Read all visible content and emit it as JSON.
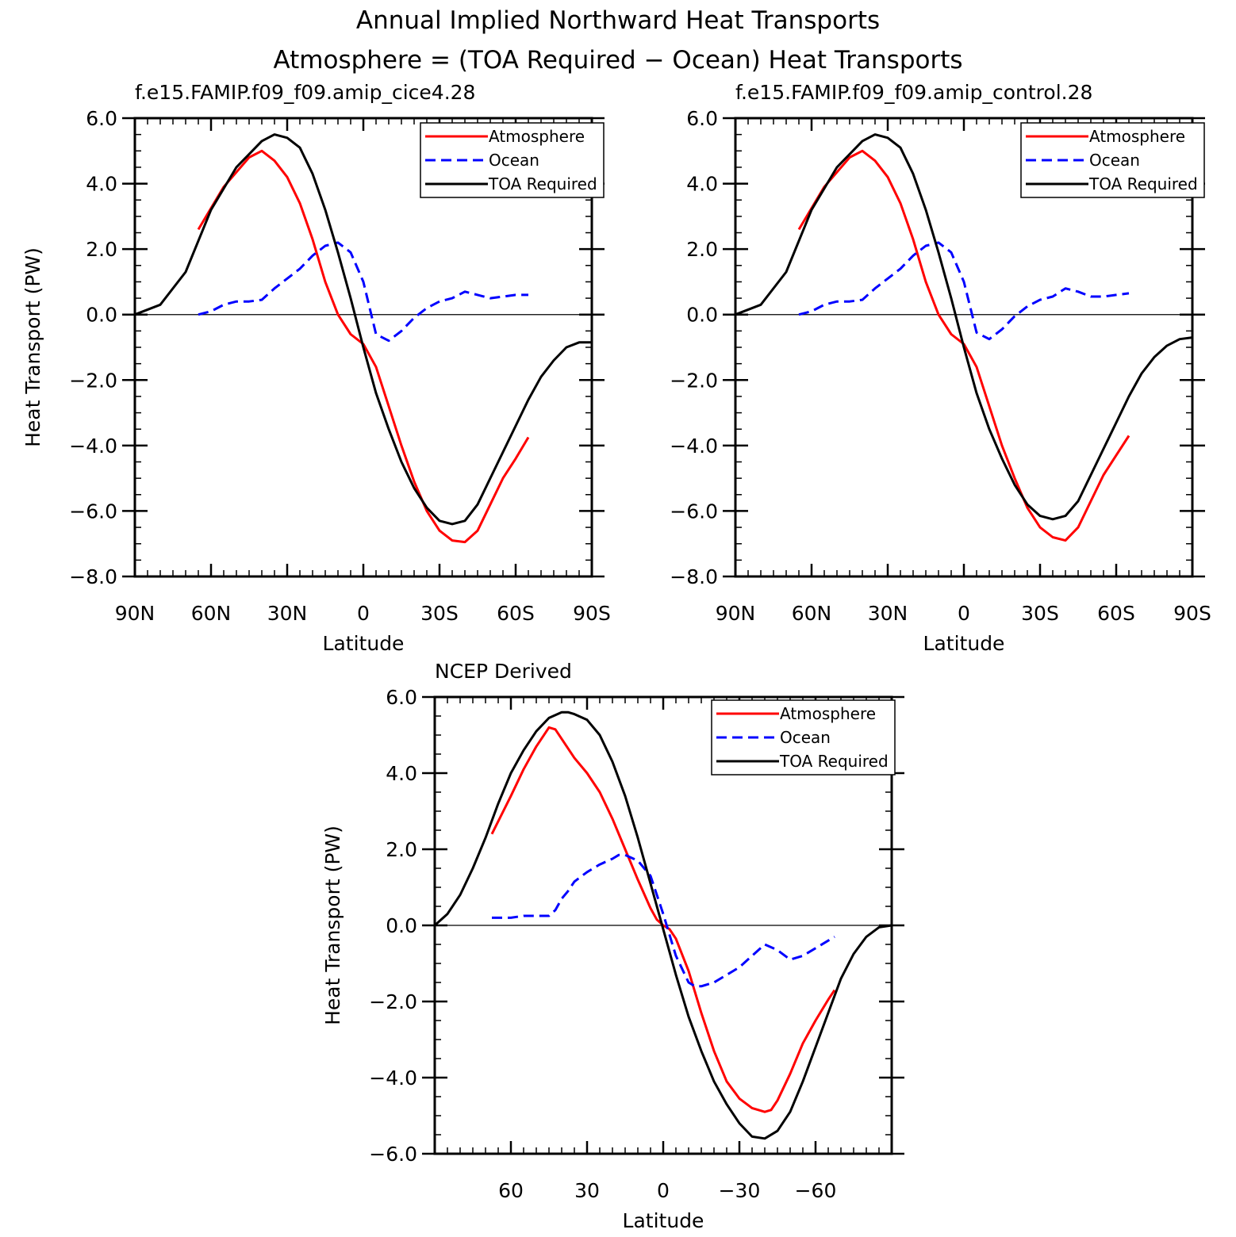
{
  "figure": {
    "title_line1": "Annual Implied Northward Heat Transports",
    "title_line2": "Atmosphere = (TOA Required − Ocean) Heat Transports"
  },
  "colors": {
    "atmosphere": "#ff0000",
    "ocean": "#0000ff",
    "toa": "#000000"
  },
  "chart_data": [
    {
      "type": "line",
      "title": "f.e15.FAMIP.f09_f09.amip_cice4.28",
      "xlabel": "Latitude",
      "ylabel": "Heat Transport (PW)",
      "xlim": [
        90,
        -90
      ],
      "ylim": [
        -8,
        6
      ],
      "x_ticks": [
        90,
        60,
        30,
        0,
        -30,
        -60,
        -90
      ],
      "x_tick_labels": [
        "90N",
        "60N",
        "30N",
        "0",
        "30S",
        "60S",
        "90S"
      ],
      "y_ticks": [
        6,
        4,
        2,
        0,
        -2,
        -4,
        -6,
        -8
      ],
      "y_tick_labels": [
        "6.0",
        "4.0",
        "2.0",
        "0.0",
        "−2.0",
        "−4.0",
        "−6.0",
        "−8.0"
      ],
      "legend_position": "top-right",
      "series": [
        {
          "name": "Atmosphere",
          "style": "solid",
          "color_key": "atmosphere",
          "x": [
            65,
            55,
            45,
            40,
            35,
            30,
            25,
            20,
            15,
            10,
            5,
            0,
            -5,
            -10,
            -15,
            -20,
            -25,
            -30,
            -35,
            -40,
            -45,
            -50,
            -55,
            -60,
            -65
          ],
          "y": [
            2.6,
            3.9,
            4.8,
            5.0,
            4.7,
            4.2,
            3.4,
            2.3,
            1.0,
            0.0,
            -0.6,
            -0.9,
            -1.6,
            -2.8,
            -4.0,
            -5.1,
            -6.0,
            -6.6,
            -6.9,
            -6.95,
            -6.6,
            -5.8,
            -5.0,
            -4.4,
            -3.75
          ]
        },
        {
          "name": "Ocean",
          "style": "dashed",
          "color_key": "ocean",
          "x": [
            65,
            60,
            55,
            50,
            45,
            40,
            35,
            30,
            25,
            20,
            15,
            10,
            5,
            0,
            -5,
            -10,
            -15,
            -20,
            -25,
            -30,
            -35,
            -40,
            -45,
            -50,
            -55,
            -60,
            -65
          ],
          "y": [
            0.0,
            0.1,
            0.3,
            0.4,
            0.4,
            0.45,
            0.8,
            1.1,
            1.4,
            1.8,
            2.1,
            2.2,
            1.9,
            1.0,
            -0.6,
            -0.8,
            -0.5,
            -0.1,
            0.2,
            0.4,
            0.5,
            0.7,
            0.6,
            0.5,
            0.55,
            0.6,
            0.6
          ]
        },
        {
          "name": "TOA Required",
          "style": "solid",
          "color_key": "toa",
          "x": [
            90,
            80,
            70,
            60,
            50,
            40,
            35,
            30,
            25,
            20,
            15,
            10,
            5,
            0,
            -5,
            -10,
            -15,
            -20,
            -25,
            -30,
            -35,
            -40,
            -45,
            -50,
            -55,
            -60,
            -65,
            -70,
            -75,
            -80,
            -85,
            -90
          ],
          "y": [
            0.0,
            0.3,
            1.3,
            3.2,
            4.5,
            5.3,
            5.5,
            5.4,
            5.1,
            4.3,
            3.2,
            1.9,
            0.5,
            -1.0,
            -2.4,
            -3.5,
            -4.5,
            -5.3,
            -5.9,
            -6.3,
            -6.4,
            -6.3,
            -5.8,
            -5.0,
            -4.2,
            -3.4,
            -2.6,
            -1.9,
            -1.4,
            -1.0,
            -0.85,
            -0.85
          ]
        }
      ]
    },
    {
      "type": "line",
      "title": "f.e15.FAMIP.f09_f09.amip_control.28",
      "xlabel": "Latitude",
      "ylabel": "",
      "xlim": [
        90,
        -90
      ],
      "ylim": [
        -8,
        6
      ],
      "x_ticks": [
        90,
        60,
        30,
        0,
        -30,
        -60,
        -90
      ],
      "x_tick_labels": [
        "90N",
        "60N",
        "30N",
        "0",
        "30S",
        "60S",
        "90S"
      ],
      "y_ticks": [
        6,
        4,
        2,
        0,
        -2,
        -4,
        -6,
        -8
      ],
      "y_tick_labels": [
        "6.0",
        "4.0",
        "2.0",
        "0.0",
        "−2.0",
        "−4.0",
        "−6.0",
        "−8.0"
      ],
      "legend_position": "top-right",
      "series": [
        {
          "name": "Atmosphere",
          "style": "solid",
          "color_key": "atmosphere",
          "x": [
            65,
            55,
            45,
            40,
            35,
            30,
            25,
            20,
            15,
            10,
            5,
            0,
            -5,
            -10,
            -15,
            -20,
            -25,
            -30,
            -35,
            -40,
            -45,
            -50,
            -55,
            -60,
            -65
          ],
          "y": [
            2.6,
            3.9,
            4.8,
            5.0,
            4.7,
            4.2,
            3.4,
            2.3,
            1.0,
            0.0,
            -0.6,
            -0.9,
            -1.6,
            -2.8,
            -4.0,
            -5.0,
            -5.9,
            -6.5,
            -6.8,
            -6.9,
            -6.5,
            -5.7,
            -4.9,
            -4.3,
            -3.7
          ]
        },
        {
          "name": "Ocean",
          "style": "dashed",
          "color_key": "ocean",
          "x": [
            65,
            60,
            55,
            50,
            45,
            40,
            35,
            30,
            25,
            20,
            15,
            10,
            5,
            0,
            -5,
            -10,
            -15,
            -20,
            -25,
            -30,
            -35,
            -40,
            -45,
            -50,
            -55,
            -60,
            -65
          ],
          "y": [
            0.0,
            0.1,
            0.3,
            0.4,
            0.4,
            0.45,
            0.8,
            1.1,
            1.4,
            1.8,
            2.1,
            2.2,
            1.9,
            1.0,
            -0.55,
            -0.75,
            -0.45,
            -0.05,
            0.25,
            0.45,
            0.55,
            0.8,
            0.7,
            0.55,
            0.55,
            0.6,
            0.65
          ]
        },
        {
          "name": "TOA Required",
          "style": "solid",
          "color_key": "toa",
          "x": [
            90,
            80,
            70,
            60,
            50,
            40,
            35,
            30,
            25,
            20,
            15,
            10,
            5,
            0,
            -5,
            -10,
            -15,
            -20,
            -25,
            -30,
            -35,
            -40,
            -45,
            -50,
            -55,
            -60,
            -65,
            -70,
            -75,
            -80,
            -85,
            -90
          ],
          "y": [
            0.0,
            0.3,
            1.3,
            3.2,
            4.5,
            5.3,
            5.5,
            5.4,
            5.1,
            4.3,
            3.2,
            1.9,
            0.5,
            -1.0,
            -2.4,
            -3.5,
            -4.4,
            -5.2,
            -5.8,
            -6.15,
            -6.25,
            -6.15,
            -5.7,
            -4.9,
            -4.1,
            -3.3,
            -2.5,
            -1.8,
            -1.3,
            -0.95,
            -0.75,
            -0.7
          ]
        }
      ]
    },
    {
      "type": "line",
      "title": "NCEP Derived",
      "xlabel": "Latitude",
      "ylabel": "Heat Transport (PW)",
      "xlim": [
        90,
        -90
      ],
      "ylim": [
        -6,
        6
      ],
      "x_ticks": [
        60,
        30,
        0,
        -30,
        -60
      ],
      "x_tick_labels": [
        "60",
        "30",
        "0",
        "−30",
        "−60"
      ],
      "y_ticks": [
        6,
        4,
        2,
        0,
        -2,
        -4,
        -6
      ],
      "y_tick_labels": [
        "6.0",
        "4.0",
        "2.0",
        "0.0",
        "−2.0",
        "−4.0",
        "−6.0"
      ],
      "legend_position": "top-right",
      "series": [
        {
          "name": "Atmosphere",
          "style": "solid",
          "color_key": "atmosphere",
          "x": [
            67.5,
            60,
            55,
            50,
            45,
            42.5,
            40,
            35,
            30,
            25,
            20,
            15,
            10,
            5,
            2.5,
            0,
            -2.5,
            -5,
            -10,
            -15,
            -20,
            -25,
            -30,
            -35,
            -40,
            -42.5,
            -45,
            -50,
            -55,
            -60,
            -65,
            -67.5
          ],
          "y": [
            2.4,
            3.4,
            4.1,
            4.7,
            5.2,
            5.15,
            4.9,
            4.4,
            4.0,
            3.5,
            2.8,
            2.0,
            1.2,
            0.45,
            0.15,
            0.0,
            -0.1,
            -0.35,
            -1.2,
            -2.3,
            -3.3,
            -4.1,
            -4.55,
            -4.8,
            -4.9,
            -4.85,
            -4.6,
            -3.9,
            -3.1,
            -2.5,
            -1.95,
            -1.7
          ]
        },
        {
          "name": "Ocean",
          "style": "dashed",
          "color_key": "ocean",
          "x": [
            67.5,
            60,
            55,
            50,
            45,
            42.5,
            40,
            37.5,
            35,
            30,
            25,
            20,
            17.5,
            15,
            10,
            5,
            0,
            -5,
            -10,
            -12.5,
            -15,
            -20,
            -25,
            -30,
            -35,
            -40,
            -45,
            -50,
            -55,
            -60,
            -65,
            -67.5
          ],
          "y": [
            0.2,
            0.2,
            0.25,
            0.25,
            0.25,
            0.4,
            0.7,
            0.9,
            1.15,
            1.4,
            1.6,
            1.75,
            1.85,
            1.85,
            1.7,
            1.3,
            0.3,
            -0.8,
            -1.5,
            -1.6,
            -1.6,
            -1.5,
            -1.3,
            -1.1,
            -0.8,
            -0.5,
            -0.65,
            -0.9,
            -0.8,
            -0.6,
            -0.4,
            -0.3
          ]
        },
        {
          "name": "TOA Required",
          "style": "solid",
          "color_key": "toa",
          "x": [
            90,
            85,
            80,
            75,
            70,
            65,
            60,
            55,
            50,
            45,
            40,
            37.5,
            35,
            30,
            25,
            20,
            15,
            10,
            5,
            0,
            -5,
            -10,
            -15,
            -20,
            -25,
            -30,
            -35,
            -40,
            -45,
            -50,
            -55,
            -60,
            -65,
            -70,
            -75,
            -80,
            -85,
            -90
          ],
          "y": [
            0.0,
            0.3,
            0.8,
            1.5,
            2.3,
            3.2,
            4.0,
            4.6,
            5.1,
            5.45,
            5.6,
            5.6,
            5.55,
            5.4,
            5.0,
            4.3,
            3.4,
            2.3,
            1.1,
            -0.1,
            -1.3,
            -2.4,
            -3.3,
            -4.1,
            -4.7,
            -5.2,
            -5.55,
            -5.6,
            -5.4,
            -4.9,
            -4.1,
            -3.2,
            -2.3,
            -1.4,
            -0.75,
            -0.3,
            -0.05,
            0.0
          ]
        }
      ]
    }
  ]
}
